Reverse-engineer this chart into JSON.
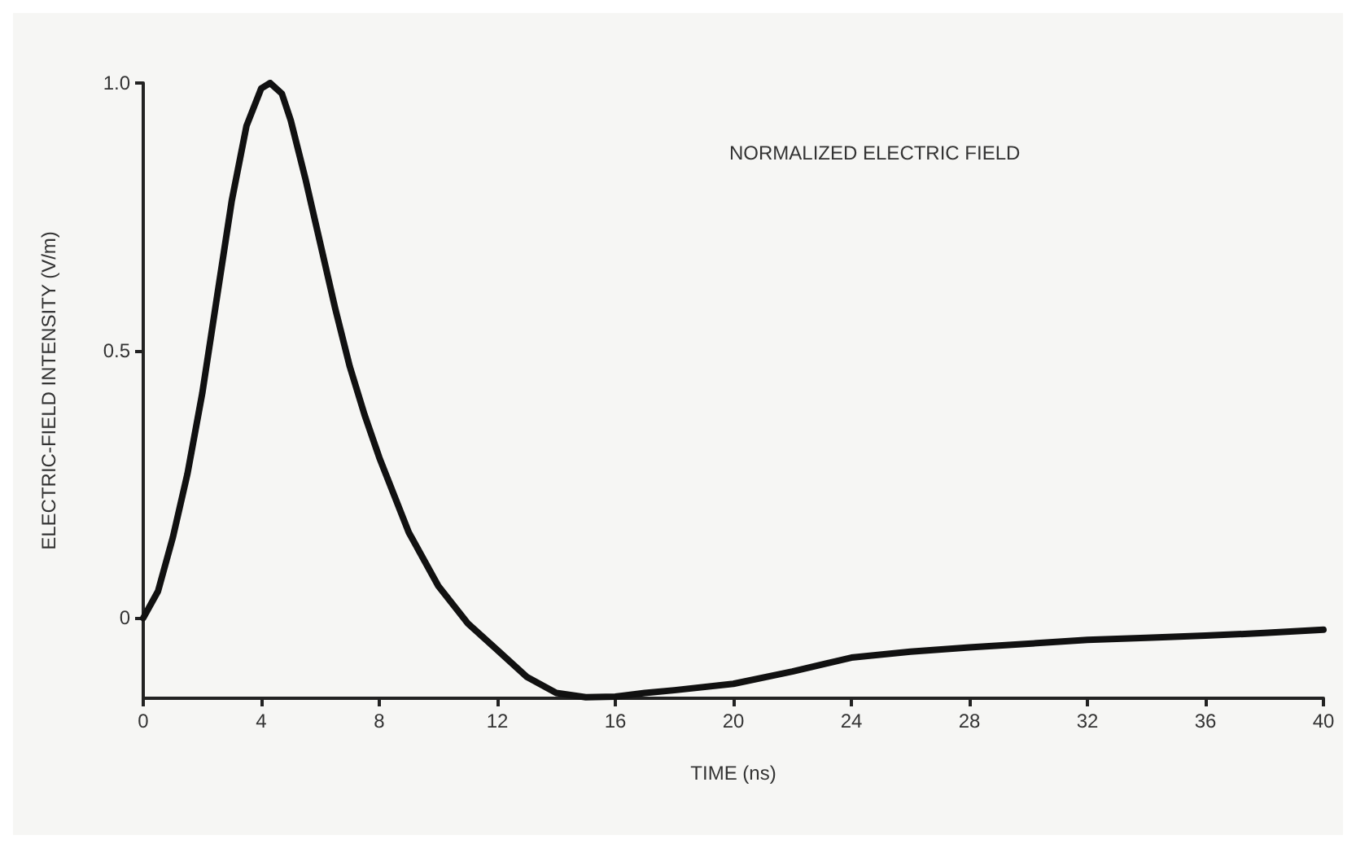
{
  "chart_data": {
    "type": "line",
    "xlabel": "TIME (ns)",
    "ylabel": "ELECTRIC-FIELD INTENSITY (V/m)",
    "annotations": [
      "NORMALIZED ELECTRIC FIELD"
    ],
    "xlim": [
      0,
      40
    ],
    "xticks": [
      0,
      4,
      8,
      12,
      16,
      20,
      24,
      28,
      32,
      36,
      40
    ],
    "ylim": [
      -0.15,
      1.0
    ],
    "yticks": [
      0,
      0.5,
      {
        "value": 1.0,
        "label": "1.0"
      }
    ],
    "grid": false,
    "marker": "none",
    "line_style": "solid",
    "series": [
      {
        "color": "#111111",
        "x": [
          0,
          0.5,
          1,
          1.5,
          2,
          2.5,
          3,
          3.5,
          4,
          4.3,
          4.7,
          5,
          5.5,
          6,
          6.5,
          7,
          7.5,
          8,
          9,
          10,
          11,
          12,
          13,
          14,
          15,
          16,
          17,
          18,
          20,
          22,
          24,
          26,
          28,
          30,
          32,
          34,
          36,
          38,
          40
        ],
        "values": [
          0,
          0.05,
          0.15,
          0.27,
          0.42,
          0.6,
          0.78,
          0.92,
          0.99,
          1.0,
          0.98,
          0.93,
          0.82,
          0.7,
          0.58,
          0.47,
          0.38,
          0.3,
          0.16,
          0.06,
          -0.01,
          -0.06,
          -0.11,
          -0.14,
          -0.148,
          -0.147,
          -0.14,
          -0.135,
          -0.123,
          -0.1,
          -0.074,
          -0.063,
          -0.055,
          -0.048,
          -0.041,
          -0.037,
          -0.033,
          -0.028,
          -0.022
        ]
      }
    ]
  }
}
